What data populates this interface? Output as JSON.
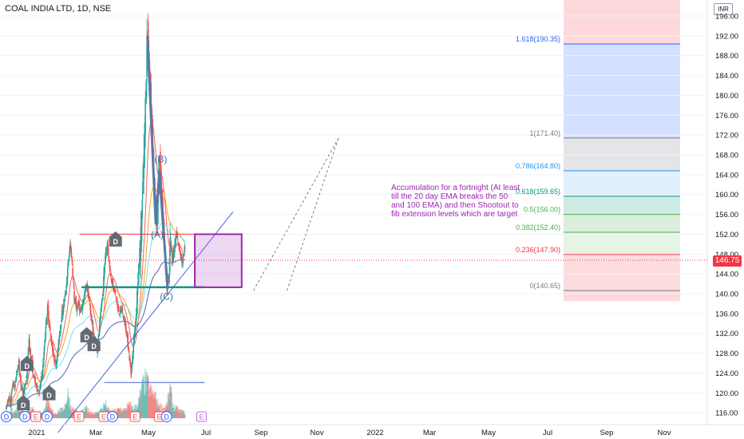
{
  "header": {
    "title": "COAL INDIA LTD, 1D, NSE",
    "unit": "INR",
    "last_price": "146.75"
  },
  "annotation_text": "Accumulation for a fortnight (At least till the 20 day EMA breaks the 50 and 100 EMA) and then Shootout to fib extension levels which are target",
  "colors": {
    "up": "#26a69a",
    "down": "#ef5350",
    "ema20": "#ef5350",
    "ema50": "#ff9800",
    "ema100": "#5ee0f0",
    "ema200": "#3f51b5",
    "trendline": "#3f67d8",
    "wave": "#5779a8",
    "box": "#9c27b0",
    "fib_line": "#787b86"
  },
  "chart_data": {
    "type": "candlestick",
    "title": "COAL INDIA LTD, 1D, NSE",
    "y_unit": "INR",
    "y_range": [
      113,
      198
    ],
    "y_ticks": [
      "196.00",
      "192.00",
      "188.00",
      "184.00",
      "180.00",
      "176.00",
      "172.00",
      "168.00",
      "164.00",
      "160.00",
      "156.00",
      "152.00",
      "148.00",
      "144.00",
      "140.00",
      "136.00",
      "132.00",
      "128.00",
      "124.00",
      "120.00",
      "116.00"
    ],
    "x_ticks": [
      "2021",
      "Mar",
      "May",
      "Jul",
      "Sep",
      "Nov",
      "2022",
      "Mar",
      "May",
      "Jul",
      "Sep",
      "Nov"
    ],
    "last_price": 146.75,
    "price_path": [
      [
        0,
        117
      ],
      [
        4,
        119
      ],
      [
        8,
        117.5
      ],
      [
        12,
        122
      ],
      [
        16,
        121
      ],
      [
        20,
        124
      ],
      [
        24,
        126
      ],
      [
        28,
        122
      ],
      [
        32,
        120
      ],
      [
        36,
        121
      ],
      [
        40,
        124
      ],
      [
        44,
        130
      ],
      [
        48,
        127
      ],
      [
        52,
        124
      ],
      [
        56,
        122
      ],
      [
        60,
        121
      ],
      [
        64,
        120
      ],
      [
        68,
        123
      ],
      [
        72,
        126
      ],
      [
        76,
        133
      ],
      [
        80,
        137
      ],
      [
        84,
        133
      ],
      [
        88,
        130
      ],
      [
        92,
        127
      ],
      [
        96,
        126
      ],
      [
        100,
        128
      ],
      [
        104,
        133
      ],
      [
        108,
        136
      ],
      [
        112,
        138
      ],
      [
        116,
        141
      ],
      [
        120,
        146
      ],
      [
        124,
        150
      ],
      [
        128,
        146
      ],
      [
        132,
        139
      ],
      [
        136,
        137
      ],
      [
        140,
        138
      ],
      [
        144,
        136
      ],
      [
        148,
        138
      ],
      [
        152,
        140
      ],
      [
        156,
        142
      ],
      [
        160,
        139
      ],
      [
        164,
        136
      ],
      [
        168,
        133
      ],
      [
        172,
        130
      ],
      [
        176,
        129
      ],
      [
        180,
        132
      ],
      [
        184,
        137
      ],
      [
        188,
        141
      ],
      [
        192,
        148
      ],
      [
        196,
        150
      ],
      [
        200,
        146
      ],
      [
        204,
        143
      ],
      [
        208,
        141
      ],
      [
        212,
        140
      ],
      [
        216,
        137
      ],
      [
        220,
        136
      ],
      [
        224,
        137
      ],
      [
        228,
        135
      ],
      [
        232,
        133
      ],
      [
        236,
        130
      ],
      [
        240,
        126
      ],
      [
        242,
        124
      ],
      [
        244,
        126
      ],
      [
        248,
        131
      ],
      [
        252,
        136
      ],
      [
        256,
        144
      ],
      [
        260,
        149
      ],
      [
        264,
        158
      ],
      [
        268,
        170
      ],
      [
        272,
        186
      ],
      [
        274,
        192
      ],
      [
        276,
        188
      ],
      [
        280,
        180
      ],
      [
        284,
        172
      ],
      [
        288,
        158
      ],
      [
        292,
        155
      ],
      [
        296,
        163
      ],
      [
        298,
        166
      ],
      [
        302,
        160
      ],
      [
        306,
        152
      ],
      [
        310,
        143
      ],
      [
        312,
        141
      ],
      [
        316,
        144
      ],
      [
        318,
        152
      ],
      [
        322,
        147
      ],
      [
        326,
        149
      ],
      [
        330,
        152
      ],
      [
        334,
        150
      ],
      [
        338,
        148
      ],
      [
        342,
        146
      ],
      [
        346,
        149
      ]
    ],
    "volume_path": [
      [
        0,
        4
      ],
      [
        6,
        6
      ],
      [
        12,
        10
      ],
      [
        18,
        8
      ],
      [
        24,
        14
      ],
      [
        30,
        11
      ],
      [
        36,
        6
      ],
      [
        42,
        18
      ],
      [
        48,
        12
      ],
      [
        54,
        9
      ],
      [
        60,
        6
      ],
      [
        66,
        8
      ],
      [
        72,
        7
      ],
      [
        78,
        24
      ],
      [
        84,
        12
      ],
      [
        90,
        8
      ],
      [
        96,
        6
      ],
      [
        102,
        9
      ],
      [
        108,
        10
      ],
      [
        114,
        16
      ],
      [
        120,
        30
      ],
      [
        126,
        12
      ],
      [
        132,
        10
      ],
      [
        138,
        8
      ],
      [
        144,
        7
      ],
      [
        150,
        9
      ],
      [
        156,
        12
      ],
      [
        162,
        8
      ],
      [
        168,
        7
      ],
      [
        174,
        6
      ],
      [
        180,
        9
      ],
      [
        186,
        12
      ],
      [
        192,
        18
      ],
      [
        198,
        10
      ],
      [
        204,
        8
      ],
      [
        210,
        9
      ],
      [
        216,
        10
      ],
      [
        222,
        12
      ],
      [
        228,
        9
      ],
      [
        234,
        14
      ],
      [
        240,
        16
      ],
      [
        246,
        12
      ],
      [
        252,
        14
      ],
      [
        258,
        22
      ],
      [
        264,
        38
      ],
      [
        270,
        45
      ],
      [
        276,
        40
      ],
      [
        282,
        30
      ],
      [
        288,
        28
      ],
      [
        294,
        18
      ],
      [
        300,
        14
      ],
      [
        306,
        12
      ],
      [
        312,
        16
      ],
      [
        318,
        36
      ],
      [
        324,
        14
      ],
      [
        330,
        12
      ],
      [
        336,
        9
      ],
      [
        342,
        8
      ],
      [
        346,
        7
      ]
    ],
    "events": [
      {
        "label": "D",
        "bar": 0,
        "row": "bottom"
      },
      {
        "label": "D",
        "bar": 36,
        "row": "bottom"
      },
      {
        "label": "E",
        "bar": 57,
        "row": "bottom"
      },
      {
        "label": "D",
        "bar": 79,
        "row": "bottom"
      },
      {
        "label": "E",
        "bar": 141,
        "row": "bottom"
      },
      {
        "label": "E",
        "bar": 189,
        "row": "bottom"
      },
      {
        "label": "D",
        "bar": 206,
        "row": "bottom"
      },
      {
        "label": "E",
        "bar": 250,
        "row": "bottom"
      },
      {
        "label": "E",
        "bar": 297,
        "row": "bottom"
      },
      {
        "label": "D",
        "bar": 311,
        "row": "bottom"
      },
      {
        "label": "E",
        "bar": 379,
        "row": "bottom"
      },
      {
        "label": "D",
        "bar": 33,
        "price": 117.8
      },
      {
        "label": "D",
        "bar": 40,
        "price": 125.7
      },
      {
        "label": "D",
        "bar": 83,
        "price": 119.8
      },
      {
        "label": "D",
        "bar": 156,
        "price": 131.5
      },
      {
        "label": "D",
        "bar": 170,
        "price": 129.7
      },
      {
        "label": "D",
        "bar": 212,
        "price": 150.8
      }
    ],
    "wave_points": [
      {
        "bar": 274,
        "price": 192.0
      },
      {
        "bar": 290,
        "price": 154.2
      },
      {
        "bar": 297,
        "price": 164.5
      },
      {
        "bar": 313,
        "price": 141.2
      }
    ],
    "wave_labels": [
      {
        "text": "(B)",
        "bar": 300,
        "price": 166.5
      },
      {
        "text": "(A)",
        "bar": 293,
        "price": 151.3
      },
      {
        "text": "(C)",
        "bar": 311,
        "price": 138.8
      }
    ],
    "horizontal_lines": [
      {
        "price": 152.0,
        "bar_from": 142,
        "bar_to": 385,
        "color": "#f23645"
      },
      {
        "price": 141.3,
        "bar_from": 146,
        "bar_to": 385,
        "color": "#089981"
      },
      {
        "price": 122.1,
        "bar_from": 190,
        "bar_to": 385,
        "color": "#3f67d8"
      }
    ],
    "trendline": {
      "from": {
        "bar": 100,
        "price": 112.0
      },
      "to": {
        "bar": 440,
        "price": 156.5
      }
    },
    "accumulation_box": {
      "bar_from": 366,
      "bar_to": 457,
      "price_from": 141.3,
      "price_to": 152.0
    },
    "fib_levels": [
      {
        "label": "0(140.65)",
        "value": 140.65,
        "color": "#787b86",
        "fill": "#f7525f"
      },
      {
        "label": "0.236(147.90)",
        "value": 147.9,
        "color": "#f23645",
        "fill": "#f7525f"
      },
      {
        "label": "0.382(152.40)",
        "value": 152.4,
        "color": "#4caf50",
        "fill": "#81c784"
      },
      {
        "label": "0.5(156.00)",
        "value": 156.0,
        "color": "#4caf50",
        "fill": "#4caf50"
      },
      {
        "label": "0.618(159.65)",
        "value": 159.65,
        "color": "#089981",
        "fill": "#089981"
      },
      {
        "label": "0.786(164.80)",
        "value": 164.8,
        "color": "#2196f3",
        "fill": "#64b5f6"
      },
      {
        "label": "1(171.40)",
        "value": 171.4,
        "color": "#787b86",
        "fill": "#787b86"
      },
      {
        "label": "1.618(190.35)",
        "value": 190.35,
        "color": "#2962ff",
        "fill": "#2962ff"
      }
    ],
    "fib_dashed": [
      {
        "from": {
          "bar": 480,
          "price": 140.65
        },
        "to": {
          "bar": 645,
          "price": 171.4
        }
      },
      {
        "from": {
          "bar": 545,
          "price": 140.65
        },
        "to": {
          "bar": 645,
          "price": 171.4
        }
      }
    ]
  }
}
